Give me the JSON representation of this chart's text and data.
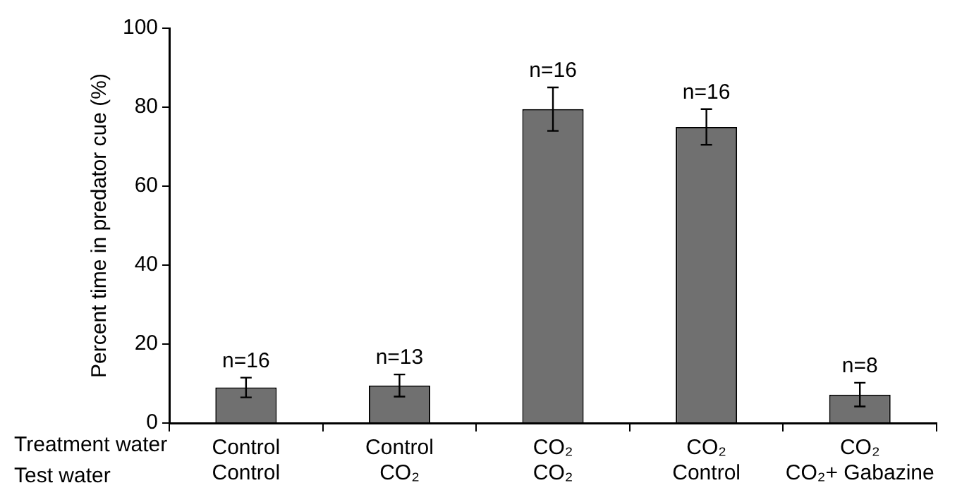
{
  "chart_data": {
    "type": "bar",
    "ylabel": "Percent time in predator cue (%)",
    "categories": [
      "Control\nControl",
      "Control\nCO₂",
      "CO₂\nCO₂",
      "CO₂\nControl",
      "CO₂\nCO₂+ Gabazine"
    ],
    "values": [
      9.0,
      9.5,
      79.5,
      75.0,
      7.2
    ],
    "errors": [
      2.5,
      2.8,
      5.5,
      4.5,
      3.0
    ],
    "color": "#707070",
    "ylim": [
      0,
      100
    ],
    "yticks": [
      0,
      20,
      40,
      60,
      80,
      100
    ],
    "grid": false,
    "legend": false,
    "annotations": [
      "Treatment water",
      "Test water",
      {
        "text": "n=16",
        "x": "Control\nControl",
        "y": 11.5
      },
      {
        "text": "n=13",
        "x": "Control\nCO₂",
        "y": 12.3
      },
      {
        "text": "n=16",
        "x": "CO₂\nCO₂",
        "y": 85
      },
      {
        "text": "n=16",
        "x": "CO₂\nControl",
        "y": 79.5
      },
      {
        "text": "n=8",
        "x": "CO₂\nCO₂+ Gabazine",
        "y": 10.2
      }
    ]
  }
}
